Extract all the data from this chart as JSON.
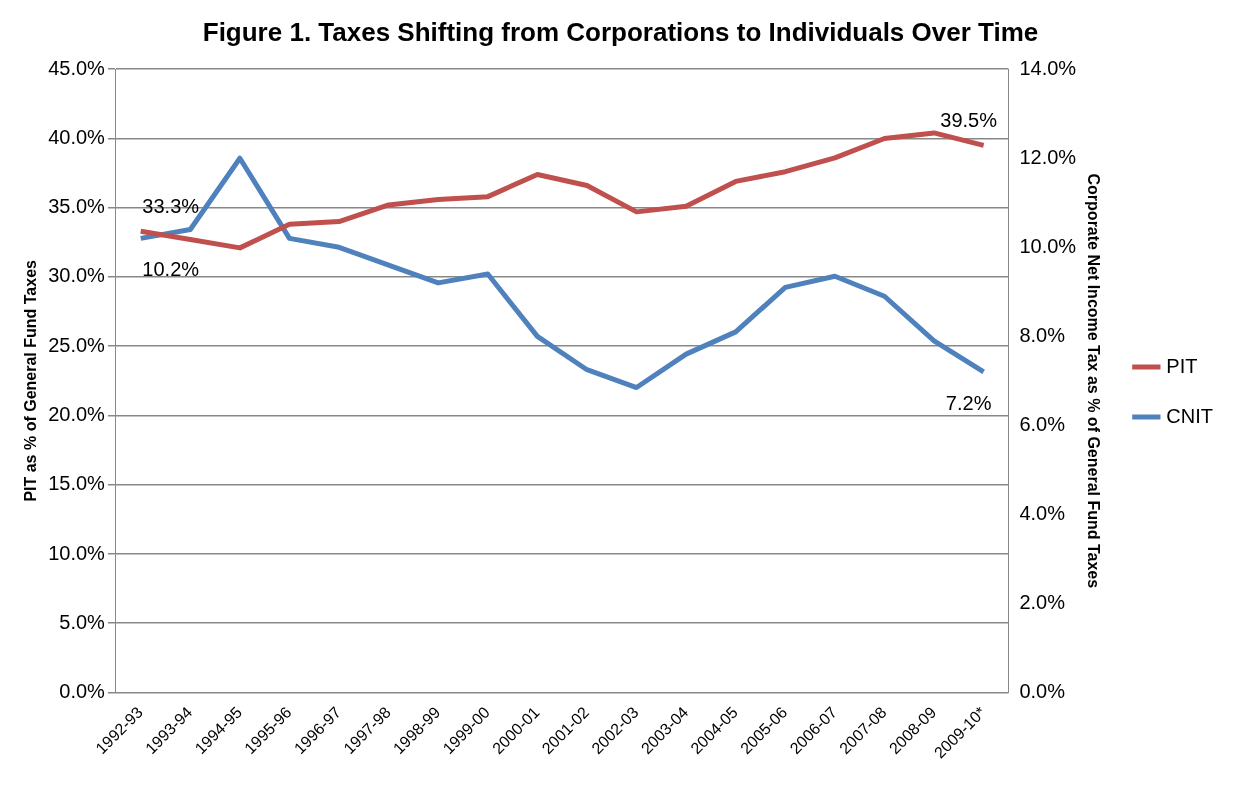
{
  "chart_data": {
    "type": "line",
    "title": "Figure 1. Taxes Shifting from Corporations to Individuals Over Time",
    "ylabel": "PIT as % of General Fund Taxes",
    "y2label": "Corporate Net Income Tax as % of General Fund Taxes",
    "categories": [
      "1992-93",
      "1993-94",
      "1994-95",
      "1995-96",
      "1996-97",
      "1997-98",
      "1998-99",
      "1999-00",
      "2000-01",
      "2001-02",
      "2002-03",
      "2003-04",
      "2004-05",
      "2005-06",
      "2006-07",
      "2007-08",
      "2008-09",
      "2009-10*"
    ],
    "series": [
      {
        "name": "PIT",
        "color": "#c0504d",
        "values": [
          33.3,
          32.7,
          32.1,
          33.8,
          34.0,
          35.2,
          35.6,
          35.8,
          37.4,
          36.6,
          34.7,
          35.1,
          36.9,
          37.6,
          38.6,
          40.0,
          40.4,
          39.5
        ],
        "value_labels": [
          "33.3%",
          null,
          null,
          null,
          null,
          null,
          null,
          null,
          null,
          null,
          null,
          null,
          null,
          null,
          null,
          null,
          null,
          "39.5%"
        ]
      },
      {
        "name": "CNIT",
        "color": "#4f81bd",
        "axis": "y2",
        "values": [
          10.2,
          10.4,
          12.0,
          10.2,
          10.0,
          9.6,
          9.2,
          9.4,
          8.0,
          7.25,
          6.85,
          7.6,
          8.1,
          9.1,
          9.35,
          8.9,
          7.9,
          7.2
        ],
        "value_labels": [
          "10.2%",
          null,
          null,
          null,
          null,
          null,
          null,
          null,
          null,
          null,
          null,
          null,
          null,
          null,
          null,
          null,
          null,
          "7.2%"
        ]
      }
    ],
    "ylim": [
      0,
      45
    ],
    "yticks": [
      {
        "value": 0,
        "label": "0.0%"
      },
      {
        "value": 5,
        "label": "5.0%"
      },
      {
        "value": 10,
        "label": "10.0%"
      },
      {
        "value": 15,
        "label": "15.0%"
      },
      {
        "value": 20,
        "label": "20.0%"
      },
      {
        "value": 25,
        "label": "25.0%"
      },
      {
        "value": 30,
        "label": "30.0%"
      },
      {
        "value": 35,
        "label": "35.0%"
      },
      {
        "value": 40,
        "label": "40.0%"
      },
      {
        "value": 45,
        "label": "45.0%"
      }
    ],
    "y2lim": [
      0,
      14
    ],
    "y2ticks": [
      {
        "value": 0,
        "label": "0.0%"
      },
      {
        "value": 2,
        "label": "2.0%"
      },
      {
        "value": 4,
        "label": "4.0%"
      },
      {
        "value": 6,
        "label": "6.0%"
      },
      {
        "value": 8,
        "label": "8.0%"
      },
      {
        "value": 10,
        "label": "10.0%"
      },
      {
        "value": 12,
        "label": "12.0%"
      },
      {
        "value": 14,
        "label": "14.0%"
      }
    ],
    "grid": "y",
    "legend": "right",
    "marker": "none",
    "line_style": "solid"
  }
}
